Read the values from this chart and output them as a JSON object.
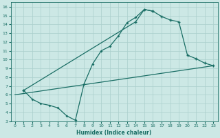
{
  "xlabel": "Humidex (Indice chaleur)",
  "bg_color": "#cce8e5",
  "grid_color": "#aacfcc",
  "line_color": "#1a6e65",
  "xlim": [
    -0.5,
    23.5
  ],
  "ylim": [
    3,
    16.5
  ],
  "xticks": [
    0,
    1,
    2,
    3,
    4,
    5,
    6,
    7,
    8,
    9,
    10,
    11,
    12,
    13,
    14,
    15,
    16,
    17,
    18,
    19,
    20,
    21,
    22,
    23
  ],
  "yticks": [
    3,
    4,
    5,
    6,
    7,
    8,
    9,
    10,
    11,
    12,
    13,
    14,
    15,
    16
  ],
  "line1_x": [
    1,
    2,
    3,
    4,
    5,
    6,
    7,
    8,
    9,
    10,
    11,
    12,
    13,
    14,
    15,
    16
  ],
  "line1_y": [
    6.5,
    5.5,
    5.0,
    4.8,
    4.5,
    3.6,
    3.1,
    7.2,
    9.5,
    11.0,
    11.5,
    12.7,
    14.2,
    14.8,
    15.7,
    15.5
  ],
  "line2_x": [
    1,
    14,
    15,
    16,
    17,
    18,
    19,
    20,
    21,
    22,
    23
  ],
  "line2_y": [
    6.5,
    14.3,
    15.7,
    15.5,
    14.9,
    14.5,
    14.3,
    10.5,
    10.1,
    9.6,
    9.3
  ],
  "line3_x": [
    0,
    23
  ],
  "line3_y": [
    6.0,
    9.3
  ]
}
